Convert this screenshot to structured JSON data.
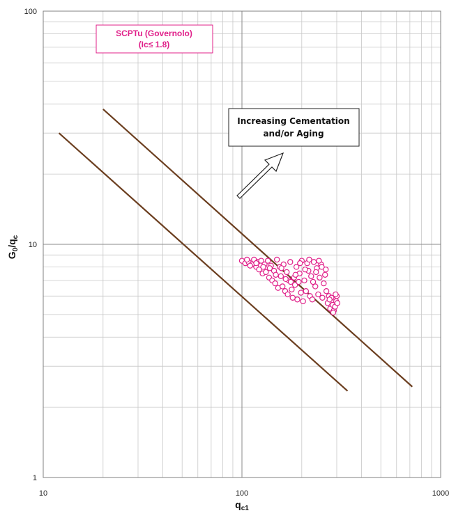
{
  "chart_data": {
    "type": "scatter",
    "xscale": "log",
    "yscale": "log",
    "xlim": [
      10,
      1000
    ],
    "ylim": [
      1,
      100
    ],
    "xlabel": "q",
    "xlabel_sub": "c1",
    "ylabel": "G",
    "ylabel_sub1": "0",
    "ylabel_mid": "/q",
    "ylabel_sub2": "c",
    "x_tick_labels": [
      "10",
      "100",
      "1000"
    ],
    "y_tick_labels": [
      "1",
      "10",
      "100"
    ],
    "grid": true,
    "legend_box": {
      "line1": "SCPTu (Governolo)",
      "line2": "(Ic≤ 1.8)",
      "color": "#e0218a"
    },
    "annotation": {
      "line1": "Increasing Cementation",
      "line2": "and/or Aging"
    },
    "lines": [
      {
        "x": [
          20,
          720
        ],
        "y": [
          38,
          2.45
        ],
        "color": "#6b3e1f"
      },
      {
        "x": [
          12,
          340
        ],
        "y": [
          30,
          2.35
        ],
        "color": "#6b3e1f"
      }
    ],
    "series": [
      {
        "marker": "circle-open",
        "color": "#e0218a",
        "points": [
          [
            100,
            8.5
          ],
          [
            104,
            8.3
          ],
          [
            108,
            8.4
          ],
          [
            112,
            8.2
          ],
          [
            115,
            8.6
          ],
          [
            118,
            8.0
          ],
          [
            120,
            8.4
          ],
          [
            122,
            7.8
          ],
          [
            125,
            8.5
          ],
          [
            127,
            7.5
          ],
          [
            130,
            8.2
          ],
          [
            132,
            7.6
          ],
          [
            135,
            8.5
          ],
          [
            137,
            7.2
          ],
          [
            140,
            8.1
          ],
          [
            142,
            7.0
          ],
          [
            145,
            7.7
          ],
          [
            147,
            6.8
          ],
          [
            150,
            8.6
          ],
          [
            152,
            6.5
          ],
          [
            155,
            8.0
          ],
          [
            157,
            7.3
          ],
          [
            160,
            6.6
          ],
          [
            162,
            8.2
          ],
          [
            165,
            6.3
          ],
          [
            168,
            7.6
          ],
          [
            170,
            6.1
          ],
          [
            172,
            7.0
          ],
          [
            175,
            8.4
          ],
          [
            178,
            6.4
          ],
          [
            180,
            5.9
          ],
          [
            183,
            7.2
          ],
          [
            185,
            6.7
          ],
          [
            188,
            8.0
          ],
          [
            190,
            5.8
          ],
          [
            193,
            6.9
          ],
          [
            195,
            7.5
          ],
          [
            198,
            6.2
          ],
          [
            200,
            8.5
          ],
          [
            203,
            5.7
          ],
          [
            206,
            7.0
          ],
          [
            210,
            6.3
          ],
          [
            213,
            8.3
          ],
          [
            216,
            7.7
          ],
          [
            220,
            6.0
          ],
          [
            223,
            7.3
          ],
          [
            226,
            5.8
          ],
          [
            230,
            8.4
          ],
          [
            234,
            6.6
          ],
          [
            238,
            7.9
          ],
          [
            242,
            6.1
          ],
          [
            246,
            7.2
          ],
          [
            250,
            8.2
          ],
          [
            254,
            5.9
          ],
          [
            258,
            6.8
          ],
          [
            262,
            7.4
          ],
          [
            266,
            6.3
          ],
          [
            270,
            5.6
          ],
          [
            274,
            6.0
          ],
          [
            278,
            5.3
          ],
          [
            282,
            5.9
          ],
          [
            286,
            5.5
          ],
          [
            290,
            5.2
          ],
          [
            294,
            5.4
          ],
          [
            298,
            5.7
          ],
          [
            300,
            6.0
          ],
          [
            302,
            5.6
          ],
          [
            296,
            6.1
          ],
          [
            288,
            5.1
          ],
          [
            276,
            5.8
          ],
          [
            264,
            7.8
          ],
          [
            252,
            8.0
          ],
          [
            244,
            8.5
          ],
          [
            236,
            7.6
          ],
          [
            228,
            6.9
          ],
          [
            218,
            8.6
          ],
          [
            208,
            7.8
          ],
          [
            196,
            8.3
          ],
          [
            186,
            7.4
          ],
          [
            176,
            6.9
          ],
          [
            166,
            7.1
          ],
          [
            158,
            7.9
          ],
          [
            148,
            7.4
          ],
          [
            138,
            7.9
          ],
          [
            128,
            8.0
          ],
          [
            118,
            8.3
          ],
          [
            110,
            8.1
          ],
          [
            106,
            8.6
          ]
        ]
      }
    ]
  }
}
